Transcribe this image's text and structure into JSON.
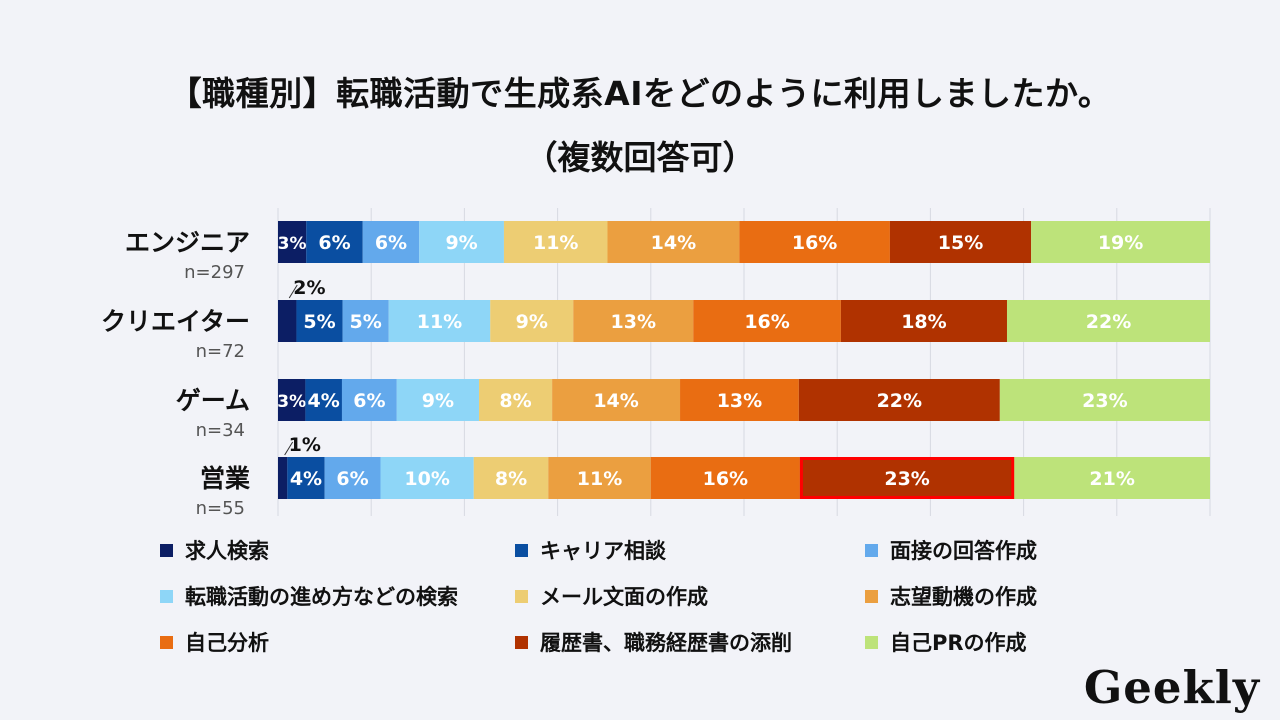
{
  "title": "【職種別】転職活動で生成系AIをどのように利用しましたか。",
  "subtitle": "（複数回答可）",
  "logo": "Geekly",
  "chart_data": {
    "type": "bar",
    "orientation": "horizontal",
    "stacked": true,
    "normalized": true,
    "categories": [
      "エンジニア",
      "クリエイター",
      "ゲーム",
      "営業"
    ],
    "sample_sizes": [
      "n=297",
      "n=72",
      "n=34",
      "n=55"
    ],
    "series": [
      {
        "name": "求人検索",
        "color": "#0c1e64",
        "values": [
          3,
          2,
          3,
          1
        ]
      },
      {
        "name": "キャリア相談",
        "color": "#0a4ea1",
        "values": [
          6,
          5,
          4,
          4
        ]
      },
      {
        "name": "面接の回答作成",
        "color": "#63a9ec",
        "values": [
          6,
          5,
          6,
          6
        ]
      },
      {
        "name": "転職活動の進め方などの検索",
        "color": "#8ed6f7",
        "values": [
          9,
          11,
          9,
          10
        ]
      },
      {
        "name": "メール文面の作成",
        "color": "#edcd73",
        "values": [
          11,
          9,
          8,
          8
        ]
      },
      {
        "name": "志望動機の作成",
        "color": "#eb9f40",
        "values": [
          14,
          13,
          14,
          11
        ]
      },
      {
        "name": "自己分析",
        "color": "#e96d12",
        "values": [
          16,
          16,
          13,
          16
        ]
      },
      {
        "name": "履歴書、職務経歴書の添削",
        "color": "#b03200",
        "values": [
          15,
          18,
          22,
          23
        ]
      },
      {
        "name": "自己PRの作成",
        "color": "#bde37a",
        "values": [
          19,
          22,
          23,
          21
        ]
      }
    ],
    "value_suffix": "%",
    "highlight": {
      "category": "営業",
      "series": "履歴書、職務経歴書の添削",
      "color": "#ff0000"
    },
    "grid": true,
    "legend_position": "bottom"
  }
}
